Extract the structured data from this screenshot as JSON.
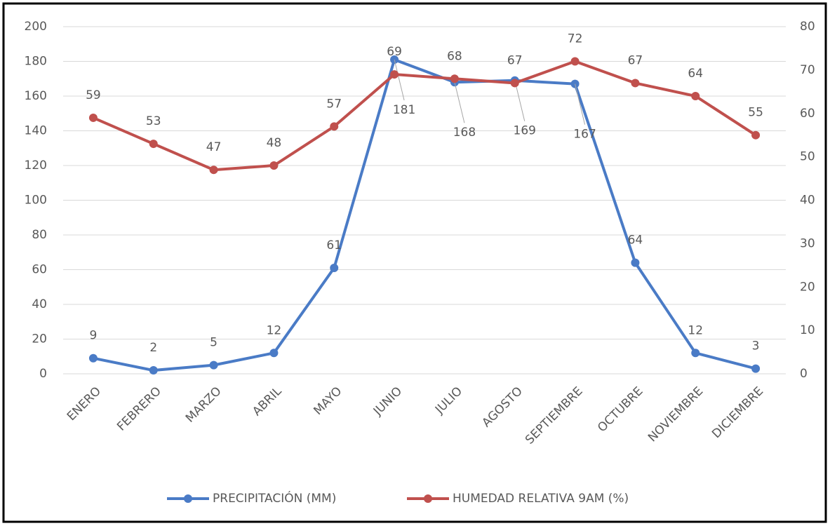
{
  "chart_data": {
    "type": "line",
    "categories": [
      "ENERO",
      "FEBRERO",
      "MARZO",
      "ABRIL",
      "MAYO",
      "JUNIO",
      "JULIO",
      "AGOSTO",
      "SEPTIEMBRE",
      "OCTUBRE",
      "NOVIEMBRE",
      "DICIEMBRE"
    ],
    "series": [
      {
        "name": "PRECIPITACIÓN (MM)",
        "color": "#4a7bc6",
        "values": [
          9,
          2,
          5,
          12,
          61,
          181,
          168,
          169,
          167,
          64,
          12,
          3
        ]
      },
      {
        "name": "HUMEDAD RELATIVA 9AM (%)",
        "color": "#c0504d",
        "axis": "y2",
        "values": [
          59,
          53,
          47,
          48,
          57,
          69,
          68,
          67,
          72,
          67,
          64,
          55
        ]
      }
    ],
    "ylim": [
      0,
      200
    ],
    "yticks": [
      0,
      20,
      40,
      60,
      80,
      100,
      120,
      140,
      160,
      180,
      200
    ],
    "y2lim": [
      0,
      80
    ],
    "y2ticks": [
      0,
      10,
      20,
      30,
      40,
      50,
      60,
      70,
      80
    ],
    "grid": true,
    "legend": "bottom"
  }
}
